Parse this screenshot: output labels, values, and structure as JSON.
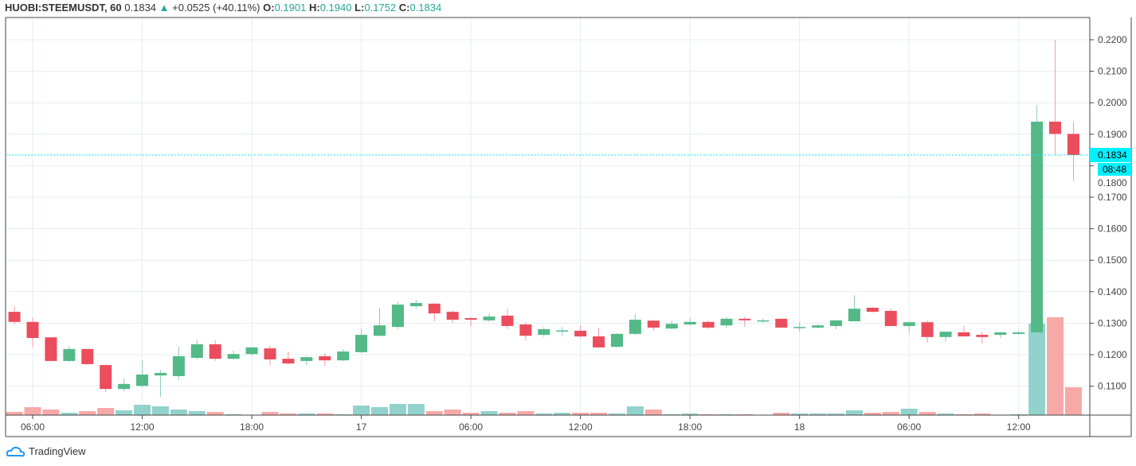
{
  "header": {
    "symbol": "HUOBI:STEEMUSDT, 60",
    "last": "0.1834",
    "change_icon": "triangle-up-icon",
    "change": "+0.0525 (+40.11%)",
    "open_label": "O:",
    "open": "0.1901",
    "high_label": "H:",
    "high": "0.1940",
    "low_label": "L:",
    "low": "0.1752",
    "close_label": "C:",
    "close": "0.1834"
  },
  "colors": {
    "up": "#53b987",
    "down": "#eb4d5c",
    "up_volume": "#92d2cc",
    "down_volume": "#f7a9a7",
    "last_price": "#00f0ff",
    "grid": "#e4edf3"
  },
  "chart_data": {
    "type": "candlestick",
    "interval": "60",
    "ylim": [
      0.105,
      0.2235
    ],
    "grid": true,
    "y_ticks": [
      "0.2200",
      "0.2100",
      "0.2000",
      "0.1900",
      "0.1800",
      "0.1700",
      "0.1600",
      "0.1500",
      "0.1400",
      "0.1300",
      "0.1200",
      "0.1100"
    ],
    "x_ticks": [
      {
        "label": "06:00",
        "hour": 1
      },
      {
        "label": "12:00",
        "hour": 7
      },
      {
        "label": "18:00",
        "hour": 13
      },
      {
        "label": "17",
        "hour": 19
      },
      {
        "label": "06:00",
        "hour": 25
      },
      {
        "label": "12:00",
        "hour": 31
      },
      {
        "label": "18:00",
        "hour": 37
      },
      {
        "label": "18",
        "hour": 43
      },
      {
        "label": "06:00",
        "hour": 49
      },
      {
        "label": "12:00",
        "hour": 55
      }
    ],
    "last_price": {
      "value": 0.1834,
      "label": "0.1834",
      "countdown": "08:48"
    },
    "candles": [
      [
        0.1336,
        0.1354,
        0.1296,
        0.1304,
        4
      ],
      [
        0.1304,
        0.1319,
        0.1223,
        0.1253,
        10
      ],
      [
        0.1255,
        0.1255,
        0.118,
        0.118,
        7
      ],
      [
        0.118,
        0.1228,
        0.1177,
        0.1218,
        3
      ],
      [
        0.1218,
        0.1218,
        0.1167,
        0.117,
        5
      ],
      [
        0.1167,
        0.1167,
        0.1081,
        0.1091,
        9
      ],
      [
        0.1091,
        0.1124,
        0.1084,
        0.1107,
        6
      ],
      [
        0.1101,
        0.1182,
        0.1096,
        0.1137,
        13
      ],
      [
        0.1134,
        0.1152,
        0.1066,
        0.1142,
        11
      ],
      [
        0.1132,
        0.1225,
        0.1119,
        0.1195,
        7
      ],
      [
        0.119,
        0.1248,
        0.1185,
        0.1233,
        5
      ],
      [
        0.1233,
        0.1245,
        0.118,
        0.1187,
        4
      ],
      [
        0.1187,
        0.1213,
        0.1185,
        0.1202,
        1
      ],
      [
        0.1202,
        0.1225,
        0.1197,
        0.1223,
        0
      ],
      [
        0.122,
        0.1228,
        0.1167,
        0.1185,
        4
      ],
      [
        0.1187,
        0.121,
        0.117,
        0.1172,
        2
      ],
      [
        0.118,
        0.1195,
        0.1167,
        0.1192,
        2
      ],
      [
        0.1195,
        0.1205,
        0.1165,
        0.1182,
        2
      ],
      [
        0.1182,
        0.1218,
        0.118,
        0.121,
        1
      ],
      [
        0.1208,
        0.1283,
        0.1205,
        0.1263,
        12
      ],
      [
        0.126,
        0.1349,
        0.1258,
        0.1293,
        10
      ],
      [
        0.1288,
        0.1369,
        0.1281,
        0.1359,
        14
      ],
      [
        0.1354,
        0.1374,
        0.1347,
        0.1364,
        14
      ],
      [
        0.1362,
        0.1364,
        0.1306,
        0.1331,
        5
      ],
      [
        0.1336,
        0.1341,
        0.1301,
        0.1311,
        7
      ],
      [
        0.1316,
        0.1319,
        0.1291,
        0.1311,
        3
      ],
      [
        0.1309,
        0.1331,
        0.1304,
        0.1321,
        5
      ],
      [
        0.1324,
        0.1346,
        0.1281,
        0.1291,
        3
      ],
      [
        0.1296,
        0.1303,
        0.1245,
        0.126,
        5
      ],
      [
        0.1263,
        0.1288,
        0.1256,
        0.1281,
        2
      ],
      [
        0.1275,
        0.1288,
        0.126,
        0.1277,
        3
      ],
      [
        0.1276,
        0.1293,
        0.1255,
        0.1258,
        3
      ],
      [
        0.1258,
        0.1286,
        0.1223,
        0.1223,
        3
      ],
      [
        0.1225,
        0.1268,
        0.1223,
        0.1266,
        2
      ],
      [
        0.1266,
        0.1329,
        0.1263,
        0.1311,
        11
      ],
      [
        0.1308,
        0.1311,
        0.1276,
        0.1286,
        7
      ],
      [
        0.1283,
        0.1308,
        0.1281,
        0.1298,
        1
      ],
      [
        0.1296,
        0.1316,
        0.1293,
        0.1304,
        2
      ],
      [
        0.1304,
        0.1308,
        0.1281,
        0.1286,
        1
      ],
      [
        0.1293,
        0.1319,
        0.1286,
        0.1314,
        1
      ],
      [
        0.1314,
        0.1321,
        0.1288,
        0.1309,
        1
      ],
      [
        0.1306,
        0.1314,
        0.1301,
        0.1309,
        0
      ],
      [
        0.1314,
        0.1314,
        0.1286,
        0.1286,
        3
      ],
      [
        0.1286,
        0.1303,
        0.1273,
        0.1288,
        2
      ],
      [
        0.1286,
        0.1298,
        0.1283,
        0.1293,
        2
      ],
      [
        0.1291,
        0.1309,
        0.1281,
        0.1309,
        2
      ],
      [
        0.1306,
        0.1389,
        0.1306,
        0.1346,
        6
      ],
      [
        0.1349,
        0.1351,
        0.1334,
        0.1336,
        3
      ],
      [
        0.1339,
        0.1346,
        0.1291,
        0.1291,
        4
      ],
      [
        0.1291,
        0.1306,
        0.1268,
        0.1303,
        8
      ],
      [
        0.1303,
        0.1309,
        0.1238,
        0.1256,
        4
      ],
      [
        0.1256,
        0.1273,
        0.1241,
        0.1273,
        2
      ],
      [
        0.1271,
        0.1291,
        0.1258,
        0.1258,
        1
      ],
      [
        0.1263,
        0.1273,
        0.1235,
        0.1256,
        2
      ],
      [
        0.1263,
        0.1271,
        0.1253,
        0.1271,
        0
      ],
      [
        0.1266,
        0.1276,
        0.1263,
        0.1271,
        1
      ],
      [
        0.1271,
        0.1993,
        0.1266,
        0.194,
        115
      ],
      [
        0.194,
        0.22,
        0.1834,
        0.1901,
        123
      ],
      [
        0.1901,
        0.194,
        0.1752,
        0.1834,
        35
      ]
    ]
  },
  "footer": {
    "logo_icon": "tradingview-cloud-icon",
    "brand": "TradingView"
  }
}
